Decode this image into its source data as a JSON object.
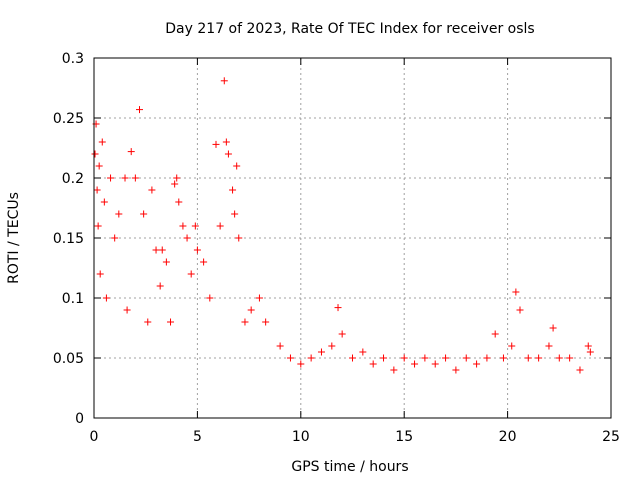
{
  "chart_data": {
    "type": "scatter",
    "title": "Day 217 of 2023, Rate Of TEC Index for receiver osls",
    "xlabel": "GPS time / hours",
    "ylabel": "ROTI / TECUs",
    "xlim": [
      0,
      25
    ],
    "ylim": [
      0,
      0.3
    ],
    "x_ticks": [
      0,
      5,
      10,
      15,
      20,
      25
    ],
    "x_tick_labels": [
      "0",
      "5",
      "10",
      "15",
      "20",
      "25"
    ],
    "y_ticks": [
      0,
      0.05,
      0.1,
      0.15,
      0.2,
      0.25,
      0.3
    ],
    "y_tick_labels": [
      "0",
      "0.05",
      "0.1",
      "0.15",
      "0.2",
      "0.25",
      "0.3"
    ],
    "grid": true,
    "marker": "+",
    "marker_color": "#ff0000",
    "series": [
      {
        "name": "ROTI",
        "x": [
          0.05,
          0.1,
          0.15,
          0.2,
          0.25,
          0.3,
          0.4,
          0.5,
          0.6,
          0.8,
          1.0,
          1.2,
          1.5,
          1.6,
          1.8,
          2.0,
          2.2,
          2.4,
          2.6,
          2.8,
          3.0,
          3.2,
          3.3,
          3.5,
          3.7,
          3.9,
          4.0,
          4.1,
          4.3,
          4.5,
          4.7,
          4.9,
          5.0,
          5.3,
          5.6,
          5.9,
          6.1,
          6.3,
          6.4,
          6.5,
          6.7,
          6.8,
          6.9,
          7.0,
          7.3,
          7.6,
          8.0,
          8.3,
          9.0,
          9.5,
          10.0,
          10.5,
          11.0,
          11.5,
          11.8,
          12.0,
          12.5,
          13.0,
          13.5,
          14.0,
          14.5,
          15.0,
          15.5,
          16.0,
          16.5,
          17.0,
          17.5,
          18.0,
          18.5,
          19.0,
          19.4,
          19.8,
          20.2,
          20.4,
          20.6,
          21.0,
          21.5,
          22.0,
          22.2,
          22.5,
          23.0,
          23.5,
          23.9,
          24.0
        ],
        "y": [
          0.22,
          0.245,
          0.19,
          0.16,
          0.21,
          0.12,
          0.23,
          0.18,
          0.1,
          0.2,
          0.15,
          0.17,
          0.2,
          0.09,
          0.222,
          0.2,
          0.257,
          0.17,
          0.08,
          0.19,
          0.14,
          0.11,
          0.14,
          0.13,
          0.08,
          0.195,
          0.2,
          0.18,
          0.16,
          0.15,
          0.12,
          0.16,
          0.14,
          0.13,
          0.1,
          0.228,
          0.16,
          0.281,
          0.23,
          0.22,
          0.19,
          0.17,
          0.21,
          0.15,
          0.08,
          0.09,
          0.1,
          0.08,
          0.06,
          0.05,
          0.045,
          0.05,
          0.055,
          0.06,
          0.092,
          0.07,
          0.05,
          0.055,
          0.045,
          0.05,
          0.04,
          0.05,
          0.045,
          0.05,
          0.045,
          0.05,
          0.04,
          0.05,
          0.045,
          0.05,
          0.07,
          0.05,
          0.06,
          0.105,
          0.09,
          0.05,
          0.05,
          0.06,
          0.075,
          0.05,
          0.05,
          0.04,
          0.06,
          0.055
        ]
      }
    ]
  }
}
